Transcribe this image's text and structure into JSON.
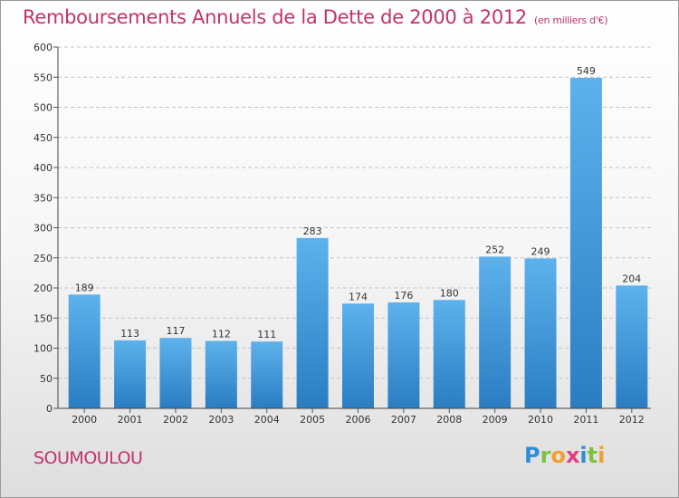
{
  "header": {
    "title": "Remboursements Annuels de la Dette de 2000 à 2012",
    "unit": "(en milliers d'€)"
  },
  "footer": {
    "city": "SOUMOULOU",
    "logo_letters": [
      "P",
      "r",
      "o",
      "x",
      "i",
      "t",
      "i"
    ],
    "logo_colors": [
      "#2f8fd6",
      "#7cc242",
      "#f0a030",
      "#e23f7f",
      "#2f8fd6",
      "#7cc242",
      "#f0a030"
    ]
  },
  "colors": {
    "bar_top": "#5db2ec",
    "bar_bottom": "#2a7dc2",
    "grid": "#c4c4c4",
    "axis_text": "#333333",
    "title": "#c2336b"
  },
  "chart_data": {
    "type": "bar",
    "title": "Remboursements Annuels de la Dette de 2000 à 2012",
    "subtitle": "(en milliers d'€)",
    "xlabel": "",
    "ylabel": "",
    "categories": [
      "2000",
      "2001",
      "2002",
      "2003",
      "2004",
      "2005",
      "2006",
      "2007",
      "2008",
      "2009",
      "2010",
      "2011",
      "2012"
    ],
    "values": [
      189,
      113,
      117,
      112,
      111,
      283,
      174,
      176,
      180,
      252,
      249,
      549,
      204
    ],
    "ylim": [
      0,
      600
    ],
    "yticks": [
      0,
      50,
      100,
      150,
      200,
      250,
      300,
      350,
      400,
      450,
      500,
      550,
      600
    ],
    "grid": true,
    "legend": "none"
  }
}
